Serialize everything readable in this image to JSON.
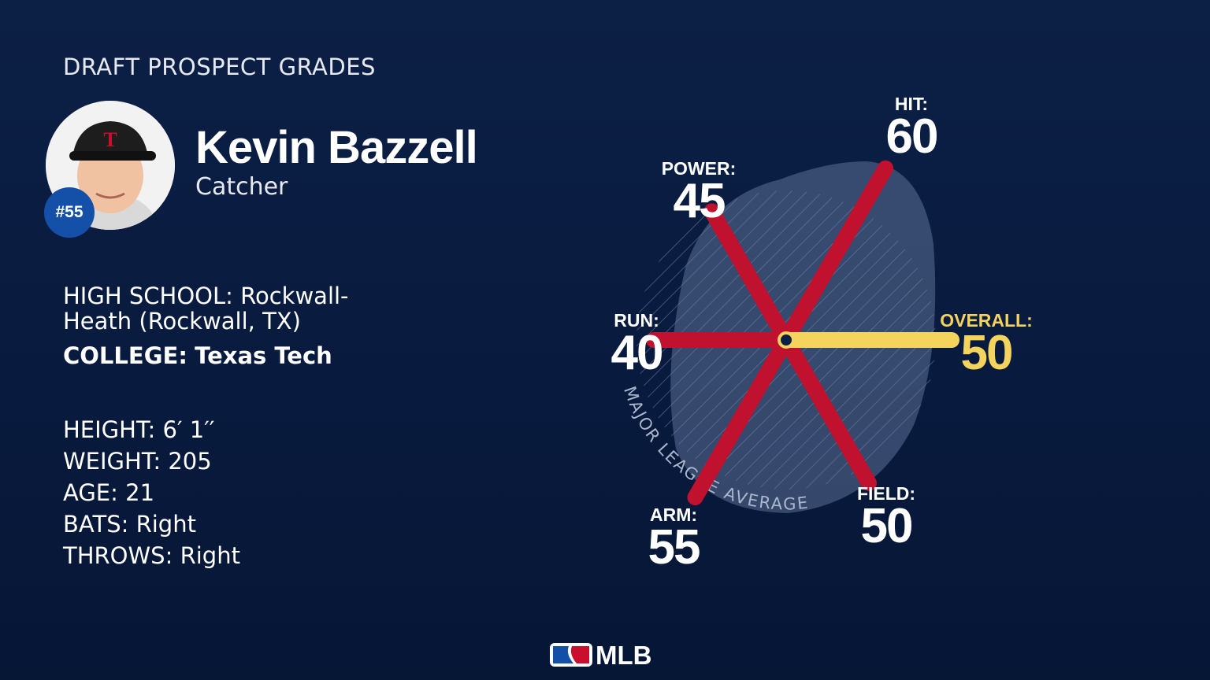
{
  "header": {
    "title": "DRAFT PROSPECT GRADES"
  },
  "player": {
    "name": "Kevin Bazzell",
    "position": "Catcher",
    "number": "#55"
  },
  "schools": [
    {
      "label": "HIGH SCHOOL:",
      "value": "Rockwall-Heath (Rockwall, TX)"
    },
    {
      "label": "COLLEGE:",
      "value": "Texas Tech"
    }
  ],
  "details": [
    {
      "label": "HEIGHT:",
      "value": "6′ 1′′"
    },
    {
      "label": "WEIGHT:",
      "value": "205"
    },
    {
      "label": "AGE:",
      "value": "21"
    },
    {
      "label": "BATS:",
      "value": "Right"
    },
    {
      "label": "THROWS:",
      "value": "Right"
    }
  ],
  "grades": {
    "spoke_color": "#c0112f",
    "items": [
      {
        "label": "HIT:",
        "value": 60
      },
      {
        "label": "POWER:",
        "value": 45
      },
      {
        "label": "RUN:",
        "value": 40
      },
      {
        "label": "ARM:",
        "value": 55
      },
      {
        "label": "FIELD:",
        "value": 50
      }
    ],
    "overall": {
      "label": "OVERALL:",
      "value": 50,
      "color": "#f5d45e"
    },
    "average_label": "MAJOR LEAGUE AVERAGE"
  },
  "footer": {
    "logo": "MLB"
  }
}
